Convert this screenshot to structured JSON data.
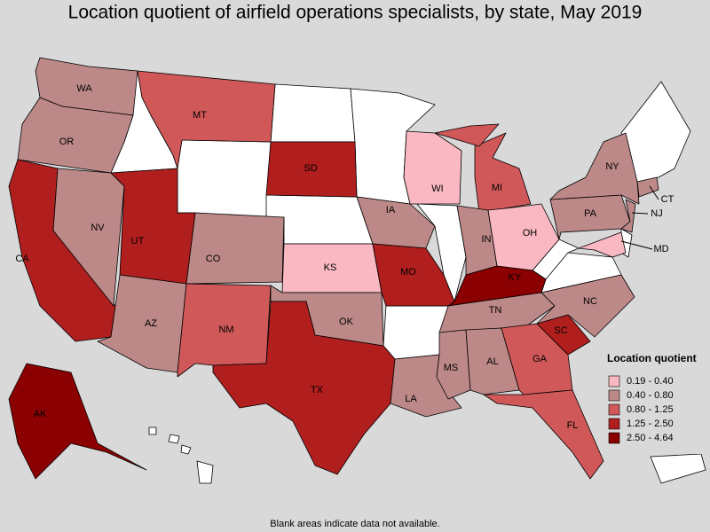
{
  "title": "Location quotient of airfield operations specialists, by state, May 2019",
  "footnote": "Blank areas indicate data not available.",
  "legend": {
    "title": "Location quotient",
    "items": [
      {
        "label": "0.19 - 0.40",
        "color": "#f9b8c2"
      },
      {
        "label": "0.40 - 0.80",
        "color": "#bc8888"
      },
      {
        "label": "0.80 - 1.25",
        "color": "#d05858"
      },
      {
        "label": "1.25 - 2.50",
        "color": "#b01e1e"
      },
      {
        "label": "2.50 - 4.64",
        "color": "#8b0000"
      }
    ]
  },
  "states": [
    {
      "label": "WA",
      "class": 1
    },
    {
      "label": "OR",
      "class": 1
    },
    {
      "label": "CA",
      "class": 3
    },
    {
      "label": "NV",
      "class": 1
    },
    {
      "label": "MT",
      "class": 2
    },
    {
      "label": "UT",
      "class": 3
    },
    {
      "label": "AZ",
      "class": 1
    },
    {
      "label": "CO",
      "class": 1
    },
    {
      "label": "NM",
      "class": 2
    },
    {
      "label": "SD",
      "class": 3
    },
    {
      "label": "KS",
      "class": 0
    },
    {
      "label": "OK",
      "class": 1
    },
    {
      "label": "TX",
      "class": 3
    },
    {
      "label": "IA",
      "class": 1
    },
    {
      "label": "MO",
      "class": 3
    },
    {
      "label": "LA",
      "class": 1
    },
    {
      "label": "WI",
      "class": 0
    },
    {
      "label": "MI",
      "class": 2
    },
    {
      "label": "IN",
      "class": 1
    },
    {
      "label": "OH",
      "class": 0
    },
    {
      "label": "KY",
      "class": 4
    },
    {
      "label": "TN",
      "class": 1
    },
    {
      "label": "MS",
      "class": 1
    },
    {
      "label": "AL",
      "class": 1
    },
    {
      "label": "GA",
      "class": 2
    },
    {
      "label": "FL",
      "class": 2
    },
    {
      "label": "SC",
      "class": 3
    },
    {
      "label": "NC",
      "class": 1
    },
    {
      "label": "PA",
      "class": 1
    },
    {
      "label": "NY",
      "class": 1
    },
    {
      "label": "NJ",
      "class": 1
    },
    {
      "label": "CT",
      "class": 1
    },
    {
      "label": "MD",
      "class": 0
    },
    {
      "label": "AK",
      "class": 4
    }
  ]
}
